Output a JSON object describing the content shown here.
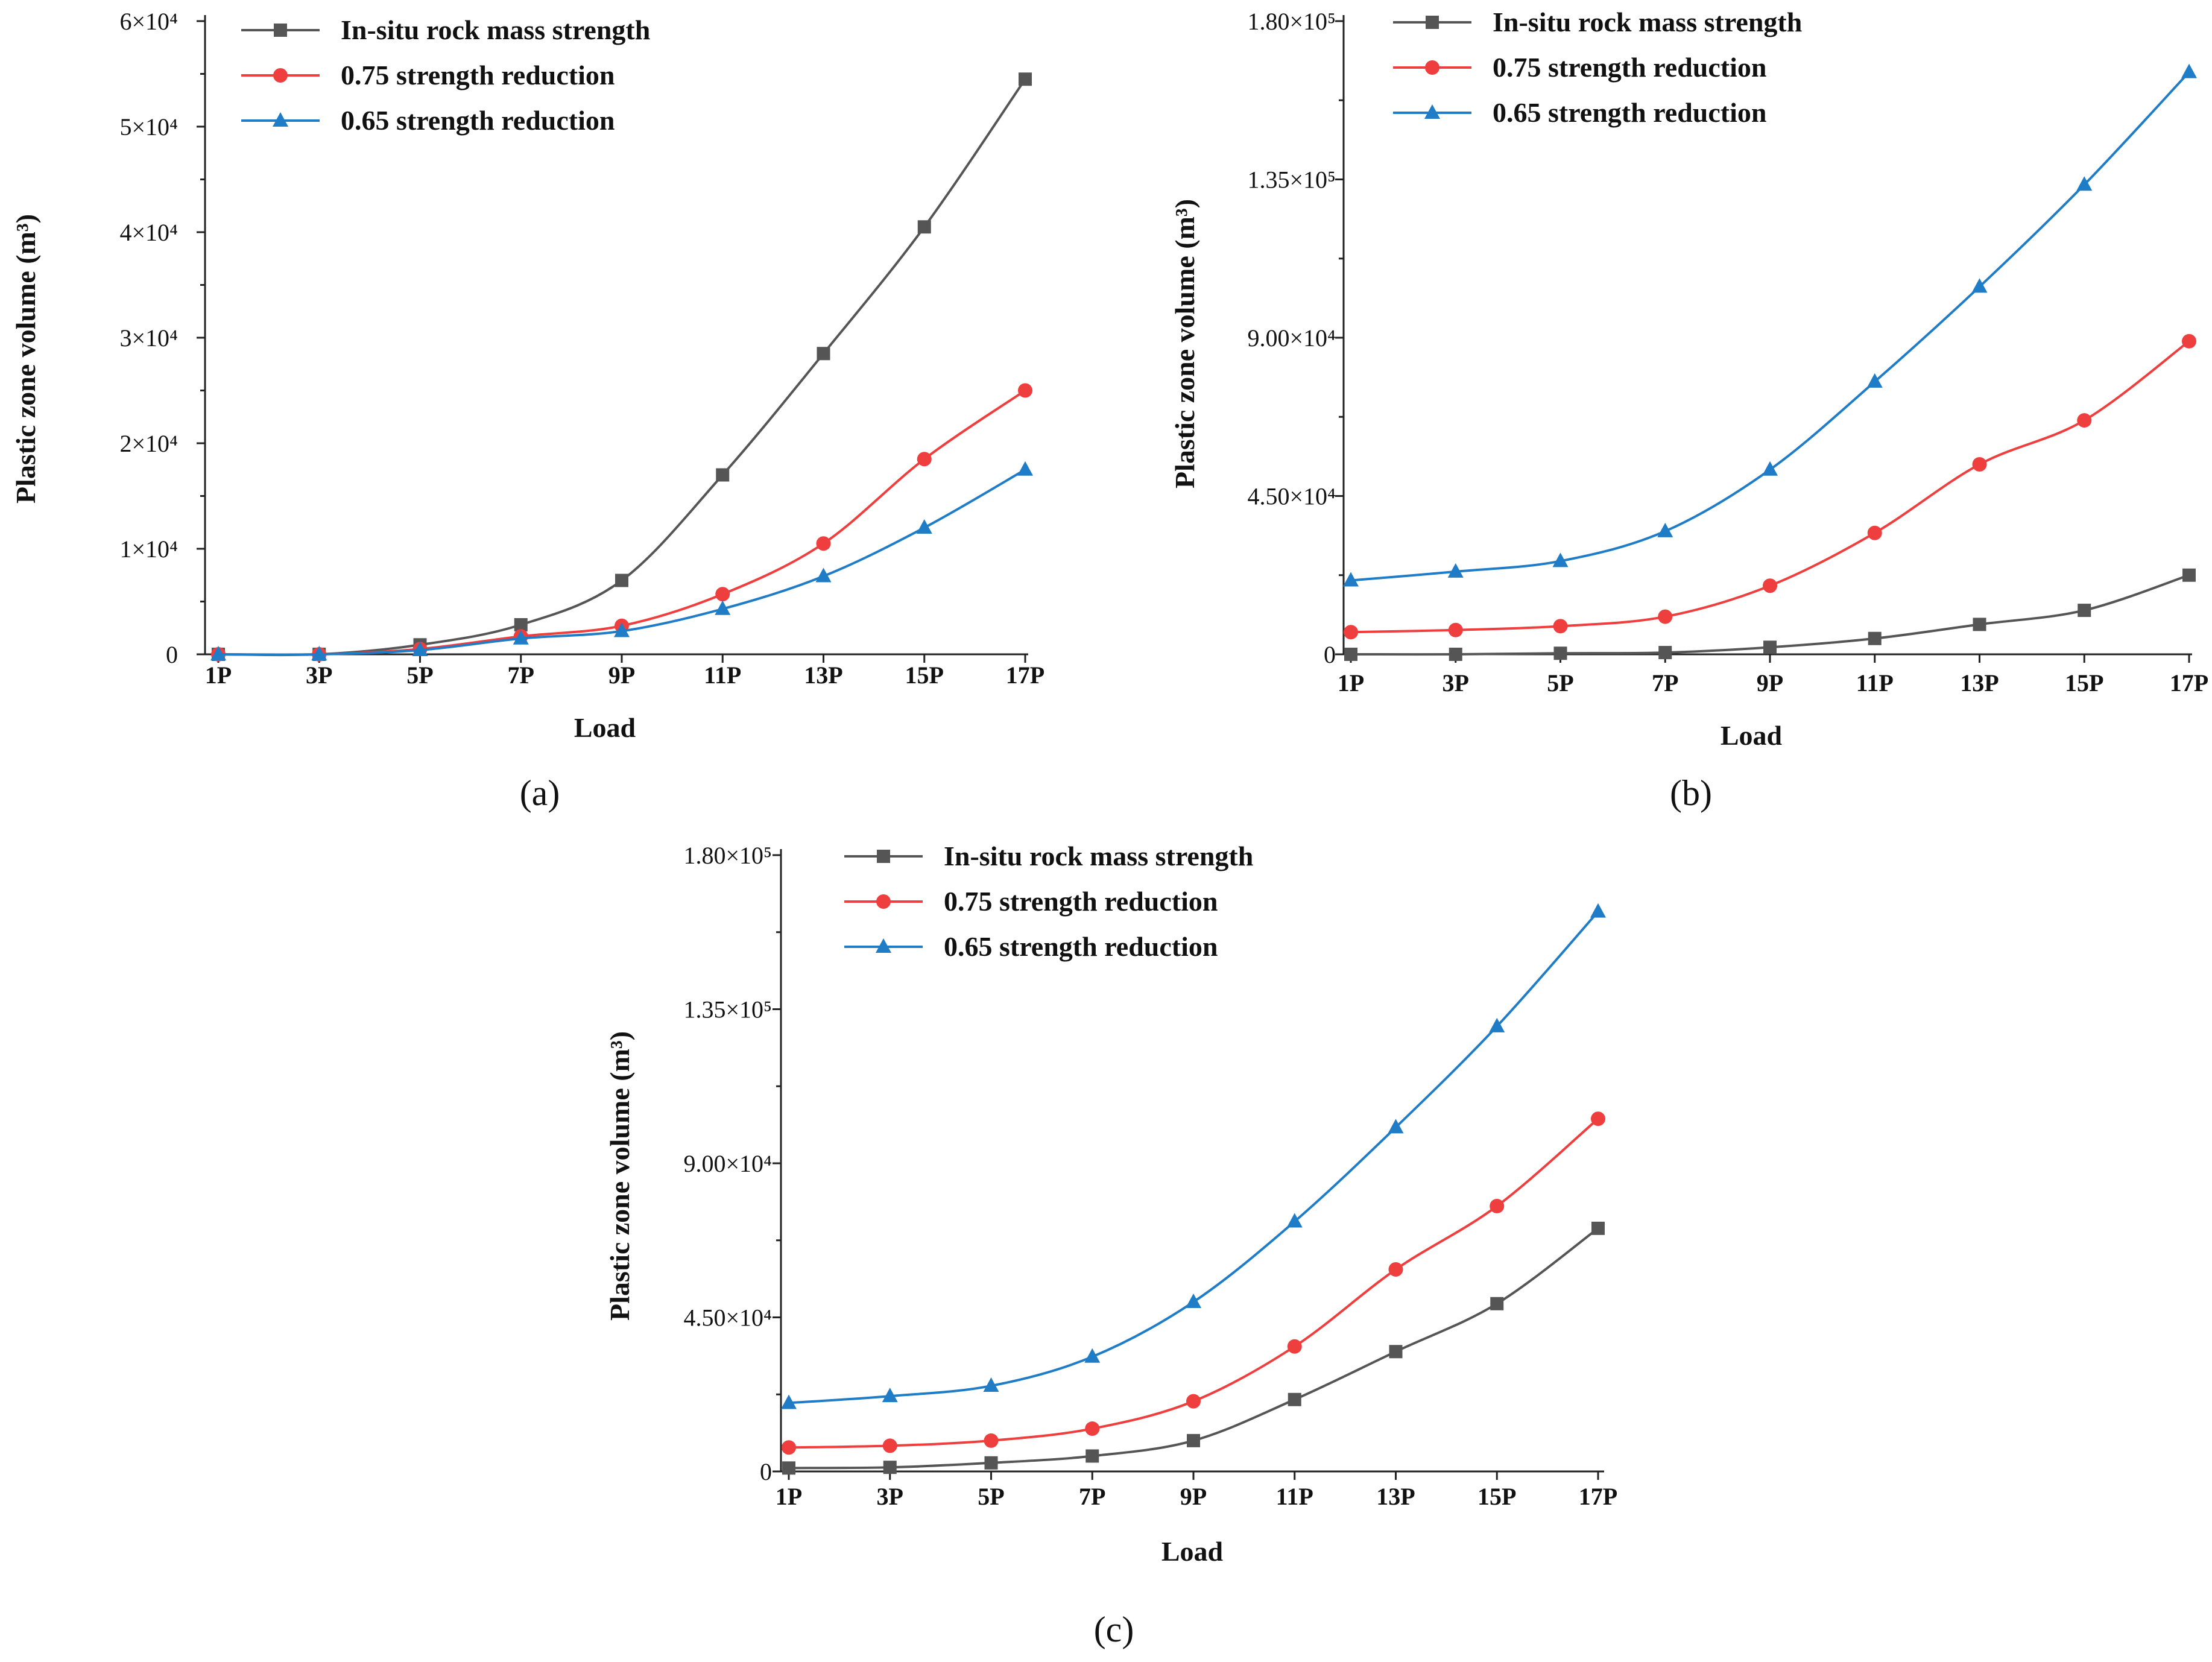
{
  "figure": {
    "captions": [
      "(a)",
      "(b)",
      "(c)"
    ]
  },
  "chart_data": [
    {
      "type": "line",
      "panel": "(a)",
      "xlabel": "Load",
      "ylabel": "Plastic zone volume (m³)",
      "categories": [
        "1P",
        "3P",
        "5P",
        "7P",
        "9P",
        "11P",
        "13P",
        "15P",
        "17P"
      ],
      "ylim": [
        0,
        60000
      ],
      "yticks": [
        0,
        10000,
        20000,
        30000,
        40000,
        50000,
        60000
      ],
      "ytick_labels": [
        "0",
        "1×10⁴",
        "2×10⁴",
        "3×10⁴",
        "4×10⁴",
        "5×10⁴",
        "6×10⁴"
      ],
      "legend_position": "top",
      "series": [
        {
          "name": "In-situ rock mass strength",
          "color": "#555555",
          "marker": "square",
          "values": [
            0,
            0,
            900,
            2800,
            7000,
            17000,
            28500,
            40500,
            54500
          ]
        },
        {
          "name": "0.75 strength reduction",
          "color": "#ef3e3e",
          "marker": "circle",
          "values": [
            0,
            0,
            500,
            1700,
            2700,
            5700,
            10500,
            18500,
            25000
          ]
        },
        {
          "name": "0.65 strength reduction",
          "color": "#1f7cc7",
          "marker": "triangle",
          "values": [
            0,
            0,
            400,
            1500,
            2200,
            4300,
            7400,
            12000,
            17500
          ]
        }
      ]
    },
    {
      "type": "line",
      "panel": "(b)",
      "xlabel": "Load",
      "ylabel": "Plastic zone volume (m³)",
      "categories": [
        "1P",
        "3P",
        "5P",
        "7P",
        "9P",
        "11P",
        "13P",
        "15P",
        "17P"
      ],
      "ylim": [
        0,
        180000
      ],
      "yticks": [
        0,
        45000,
        90000,
        135000,
        180000
      ],
      "ytick_labels": [
        "0",
        "4.50×10⁴",
        "9.00×10⁴",
        "1.35×10⁵",
        "1.80×10⁵"
      ],
      "legend_position": "top",
      "series": [
        {
          "name": "In-situ rock mass strength",
          "color": "#555555",
          "marker": "square",
          "values": [
            0,
            0,
            300,
            500,
            2000,
            4500,
            8500,
            12500,
            22500
          ]
        },
        {
          "name": "0.75 strength reduction",
          "color": "#ef3e3e",
          "marker": "circle",
          "values": [
            6300,
            6900,
            8000,
            10700,
            19500,
            34500,
            54000,
            66500,
            89000
          ]
        },
        {
          "name": "0.65 strength reduction",
          "color": "#1f7cc7",
          "marker": "triangle",
          "values": [
            21000,
            23500,
            26500,
            35000,
            52500,
            77500,
            104500,
            133500,
            165500
          ]
        }
      ]
    },
    {
      "type": "line",
      "panel": "(c)",
      "xlabel": "Load",
      "ylabel": "Plastic zone volume (m³)",
      "categories": [
        "1P",
        "3P",
        "5P",
        "7P",
        "9P",
        "11P",
        "13P",
        "15P",
        "17P"
      ],
      "ylim": [
        0,
        180000
      ],
      "yticks": [
        0,
        45000,
        90000,
        135000,
        180000
      ],
      "ytick_labels": [
        "0",
        "4.50×10⁴",
        "9.00×10⁴",
        "1.35×10⁵",
        "1.80×10⁵"
      ],
      "legend_position": "top",
      "series": [
        {
          "name": "In-situ rock mass strength",
          "color": "#555555",
          "marker": "square",
          "values": [
            1000,
            1200,
            2500,
            4500,
            9000,
            21000,
            35000,
            49000,
            71000
          ]
        },
        {
          "name": "0.75 strength reduction",
          "color": "#ef3e3e",
          "marker": "circle",
          "values": [
            7000,
            7500,
            9000,
            12500,
            20500,
            36500,
            59000,
            77500,
            103000
          ]
        },
        {
          "name": "0.65 strength reduction",
          "color": "#1f7cc7",
          "marker": "triangle",
          "values": [
            20000,
            22000,
            25000,
            33500,
            49500,
            73000,
            100500,
            130000,
            163500
          ]
        }
      ]
    }
  ]
}
